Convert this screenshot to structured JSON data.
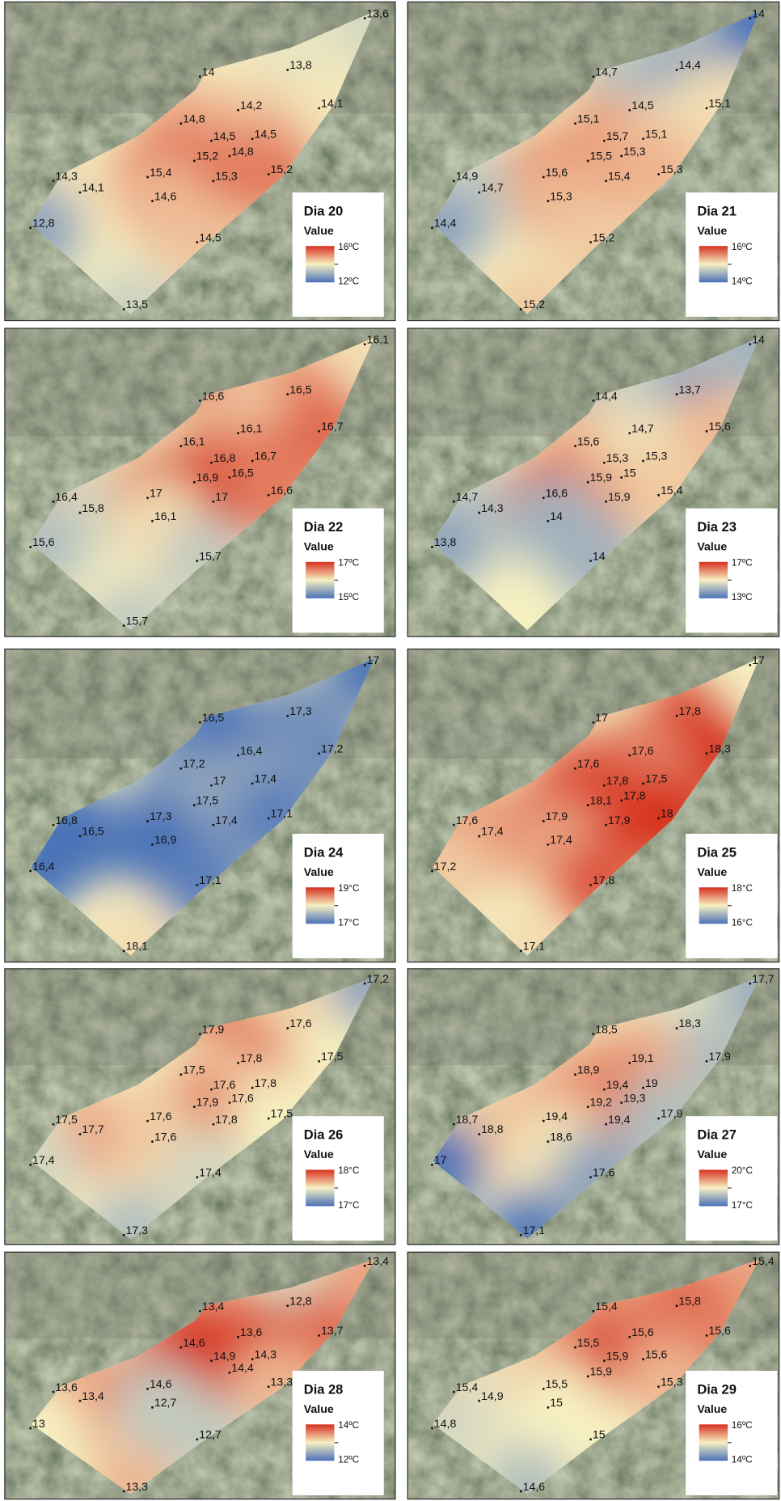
{
  "panels": [
    {
      "title": "Dia 20",
      "legend_title": "Value",
      "legend_max": "16ºC",
      "legend_min": "12ºC",
      "labels": [
        "13,6",
        "14",
        "13,8",
        "14,2",
        "14,1",
        "14,8",
        "14,5",
        "14,5",
        "15,2",
        "14,8",
        "14,3",
        "14,1",
        "15,4",
        "15,3",
        "15,2",
        "14,6",
        "12,8",
        "14,5",
        "13,5"
      ]
    },
    {
      "title": "Dia 21",
      "legend_title": "Value",
      "legend_max": "16ºC",
      "legend_min": "14ºC",
      "labels": [
        "14",
        "14,7",
        "14,4",
        "14,5",
        "15,1",
        "15,1",
        "15,7",
        "15,1",
        "15,5",
        "15,3",
        "14,9",
        "14,7",
        "15,6",
        "15,4",
        "15,3",
        "15,3",
        "14,4",
        "15,2",
        "15,2"
      ]
    },
    {
      "title": "Dia 22",
      "legend_title": "Value",
      "legend_max": "17ºC",
      "legend_min": "15ºC",
      "labels": [
        "16,1",
        "16,6",
        "16,5",
        "16,1",
        "16,7",
        "16,1",
        "16,8",
        "16,7",
        "16,9",
        "16,5",
        "16,4",
        "15,8",
        "17",
        "17",
        "16,6",
        "16,1",
        "15,6",
        "15,7",
        "15,7"
      ]
    },
    {
      "title": "Dia 23",
      "legend_title": "Value",
      "legend_max": "17ºC",
      "legend_min": "13ºC",
      "labels": [
        "14",
        "14,4",
        "13,7",
        "14,7",
        "15,6",
        "15,6",
        "15,3",
        "15,3",
        "15,9",
        "15",
        "14,7",
        "14,3",
        "16,6",
        "15,9",
        "15,4",
        "14",
        "13,8",
        "14",
        null
      ]
    },
    {
      "title": "Dia 24",
      "legend_title": "Value",
      "legend_max": "19°C",
      "legend_min": "17°C",
      "labels": [
        "17",
        "16,5",
        "17,3",
        "16,4",
        "17,2",
        "17,2",
        "17",
        "17,4",
        "17,5",
        null,
        "16,8",
        "16,5",
        "17,3",
        "17,4",
        "17,1",
        "16,9",
        "16,4",
        "17,1",
        "18,1"
      ]
    },
    {
      "title": "Dia 25",
      "legend_title": "Value",
      "legend_max": "18°C",
      "legend_min": "16°C",
      "labels": [
        "17",
        "17",
        "17,8",
        "17,6",
        "18,3",
        "17,6",
        "17,8",
        "17,5",
        "18,1",
        "17,8",
        "17,6",
        "17,4",
        "17,9",
        "17,9",
        "18",
        "17,4",
        "17,2",
        "17,8",
        "17,1"
      ]
    },
    {
      "title": "Dia 26",
      "legend_title": "Value",
      "legend_max": "18°C",
      "legend_min": "17°C",
      "labels": [
        "17,2",
        "17,9",
        "17,6",
        "17,8",
        "17,5",
        "17,5",
        "17,6",
        "17,8",
        "17,9",
        "17,6",
        "17,5",
        "17,7",
        "17,6",
        "17,8",
        "17,5",
        "17,6",
        "17,4",
        "17,4",
        "17,3"
      ]
    },
    {
      "title": "Dia 27",
      "legend_title": "Value",
      "legend_max": "20°C",
      "legend_min": "17°C",
      "labels": [
        "17,7",
        "18,5",
        "18,3",
        "19,1",
        "17,9",
        "18,9",
        "19,4",
        "19",
        "19,2",
        "19,3",
        "18,7",
        "18,8",
        "19,4",
        "19,4",
        "17,9",
        "18,6",
        "17",
        "17,6",
        "17,1"
      ]
    },
    {
      "title": "Dia 28",
      "legend_title": "Value",
      "legend_max": "14ºC",
      "legend_min": "12ºC",
      "labels": [
        "13,4",
        "13,4",
        "12,8",
        "13,6",
        "13,7",
        "14,6",
        "14,9",
        "14,3",
        null,
        "14,4",
        "13,6",
        "13,4",
        "14,6",
        null,
        "13,3",
        "12,7",
        "13",
        "12,7",
        "13,3"
      ]
    },
    {
      "title": "Dia 29",
      "legend_title": "Value",
      "legend_max": "16ºC",
      "legend_min": "14ºC",
      "labels": [
        "15,4",
        "15,4",
        "15,8",
        "15,6",
        "15,6",
        "15,5",
        "15,9",
        "15,6",
        "15,9",
        null,
        "15,4",
        "14,9",
        "15,5",
        null,
        "15,3",
        "15",
        "14,8",
        "15",
        "14,6"
      ]
    }
  ]
}
